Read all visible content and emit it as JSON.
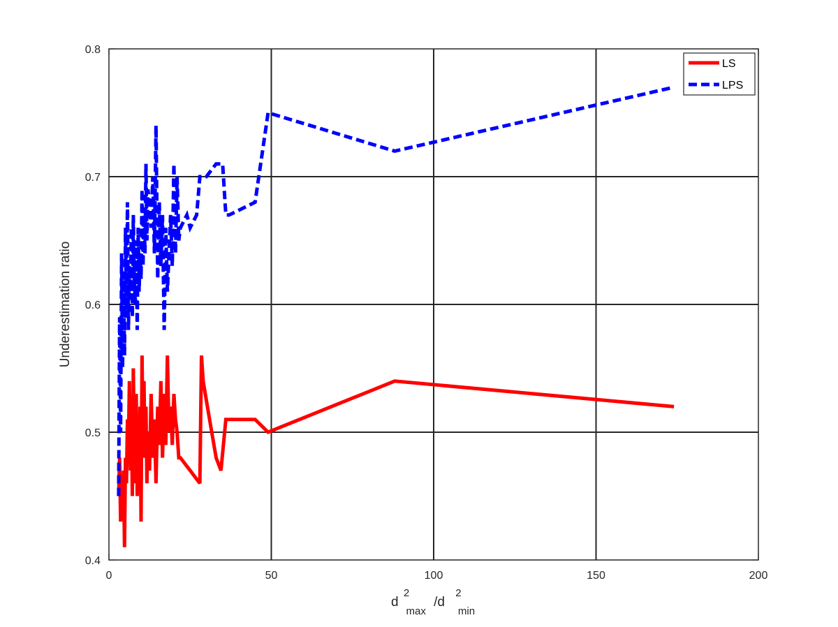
{
  "chart_data": {
    "type": "line",
    "xlabel": {
      "base1": "d",
      "sup1": "2",
      "sub1": "max",
      "sep": "/d",
      "sup2": "2",
      "sub2": "min"
    },
    "ylabel": "Underestimation ratio",
    "xlim": [
      0,
      200
    ],
    "ylim": [
      0.4,
      0.8
    ],
    "xticks": [
      0,
      50,
      100,
      150,
      200
    ],
    "yticks": [
      0.4,
      0.5,
      0.6,
      0.7,
      0.8
    ],
    "xtick_labels": [
      "0",
      "50",
      "100",
      "150",
      "200"
    ],
    "ytick_labels": [
      "0.4",
      "0.5",
      "0.6",
      "0.7",
      "0.8"
    ],
    "grid": true,
    "legend_position": "top-right",
    "series": [
      {
        "name": "LS",
        "color": "#ff0000",
        "style": "solid",
        "x": [
          3.0,
          3.3,
          3.6,
          3.9,
          4.2,
          4.5,
          4.8,
          5.1,
          5.4,
          5.7,
          6.0,
          6.3,
          6.6,
          6.9,
          7.2,
          7.5,
          7.8,
          8.1,
          8.4,
          8.7,
          9.0,
          9.3,
          9.6,
          9.9,
          10.2,
          10.5,
          10.8,
          11.1,
          11.4,
          11.7,
          12.0,
          12.5,
          13.0,
          13.5,
          14.0,
          14.5,
          15.0,
          15.5,
          16.0,
          16.5,
          17.0,
          17.5,
          18.0,
          18.5,
          19.0,
          19.5,
          20.0,
          20.5,
          21.0,
          21.5,
          22.0,
          25.0,
          28.0,
          28.5,
          29.0,
          31.0,
          33.0,
          34.5,
          36.0,
          40.0,
          45.0,
          49.0,
          88.0,
          174.0
        ],
        "y": [
          0.45,
          0.48,
          0.43,
          0.46,
          0.44,
          0.47,
          0.41,
          0.48,
          0.46,
          0.51,
          0.49,
          0.54,
          0.47,
          0.52,
          0.45,
          0.55,
          0.49,
          0.46,
          0.53,
          0.45,
          0.5,
          0.48,
          0.52,
          0.43,
          0.56,
          0.49,
          0.54,
          0.48,
          0.52,
          0.46,
          0.5,
          0.47,
          0.53,
          0.48,
          0.51,
          0.46,
          0.52,
          0.49,
          0.54,
          0.48,
          0.53,
          0.49,
          0.56,
          0.5,
          0.52,
          0.49,
          0.53,
          0.51,
          0.5,
          0.48,
          0.48,
          0.47,
          0.46,
          0.56,
          0.54,
          0.51,
          0.48,
          0.47,
          0.51,
          0.51,
          0.51,
          0.5,
          0.54,
          0.52
        ]
      },
      {
        "name": "LPS",
        "color": "#0000ff",
        "style": "dashed",
        "x": [
          3.0,
          3.3,
          3.6,
          3.9,
          4.2,
          4.5,
          4.8,
          5.1,
          5.4,
          5.7,
          6.0,
          6.3,
          6.6,
          6.9,
          7.2,
          7.5,
          7.8,
          8.1,
          8.4,
          8.7,
          9.0,
          9.3,
          9.6,
          9.9,
          10.2,
          10.5,
          10.8,
          11.1,
          11.4,
          11.7,
          12.0,
          12.5,
          13.0,
          13.5,
          14.0,
          14.5,
          15.0,
          15.5,
          16.0,
          16.5,
          17.0,
          17.5,
          18.0,
          18.5,
          19.0,
          19.5,
          20.0,
          20.5,
          21.0,
          21.5,
          22.0,
          24.0,
          25.0,
          27.0,
          28.0,
          30.0,
          33.0,
          35.0,
          36.0,
          37.0,
          45.0,
          49.0,
          88.0,
          174.0
        ],
        "y": [
          0.45,
          0.59,
          0.5,
          0.64,
          0.55,
          0.62,
          0.56,
          0.66,
          0.59,
          0.68,
          0.58,
          0.63,
          0.61,
          0.66,
          0.59,
          0.67,
          0.62,
          0.6,
          0.65,
          0.58,
          0.66,
          0.61,
          0.64,
          0.62,
          0.69,
          0.63,
          0.67,
          0.64,
          0.71,
          0.65,
          0.69,
          0.68,
          0.66,
          0.7,
          0.64,
          0.74,
          0.62,
          0.68,
          0.63,
          0.67,
          0.58,
          0.66,
          0.61,
          0.64,
          0.67,
          0.63,
          0.71,
          0.64,
          0.7,
          0.65,
          0.66,
          0.67,
          0.66,
          0.67,
          0.7,
          0.7,
          0.71,
          0.71,
          0.67,
          0.67,
          0.68,
          0.75,
          0.72,
          0.77
        ]
      }
    ]
  }
}
